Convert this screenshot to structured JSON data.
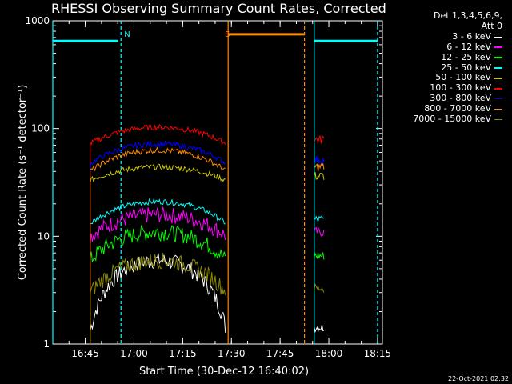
{
  "chart_data": {
    "type": "line",
    "title": "RHESSI Observing Summary Count Rates, Corrected",
    "xlabel": "Start Time (30-Dec-12 16:40:02)",
    "ylabel": "Corrected Count Rate (s⁻¹ detector⁻¹)",
    "yscale": "log",
    "ylim": [
      1,
      1000
    ],
    "yticks": [
      "1",
      "10",
      "100",
      "1000"
    ],
    "xlim_minutes": [
      -5,
      96.5
    ],
    "xticks": [
      {
        "m": 5,
        "label": "16:45"
      },
      {
        "m": 20,
        "label": "17:00"
      },
      {
        "m": 35,
        "label": "17:15"
      },
      {
        "m": 50,
        "label": "17:30"
      },
      {
        "m": 65,
        "label": "17:45"
      },
      {
        "m": 80,
        "label": "18:00"
      },
      {
        "m": 95,
        "label": "18:15"
      }
    ],
    "legend_header": [
      "Det 1,3,4,5,6,9,",
      "Att 0"
    ],
    "series": [
      {
        "name": "3 - 6 keV",
        "color": "#ffffff",
        "peak": 6,
        "edge": 1.3
      },
      {
        "name": "6 - 12 keV",
        "color": "#ff00ff",
        "peak": 16,
        "edge": 10
      },
      {
        "name": "12 - 25 keV",
        "color": "#00ff00",
        "peak": 11,
        "edge": 6
      },
      {
        "name": "25 - 50 keV",
        "color": "#00ffff",
        "peak": 21,
        "edge": 13
      },
      {
        "name": "50 - 100 keV",
        "color": "#cccc00",
        "peak": 44,
        "edge": 33
      },
      {
        "name": "100 - 300 keV",
        "color": "#ff0000",
        "peak": 103,
        "edge": 72
      },
      {
        "name": "300 - 800 keV",
        "color": "#0000ff",
        "peak": 72,
        "edge": 47
      },
      {
        "name": "800 - 7000 keV",
        "color": "#ff8800",
        "peak": 63,
        "edge": 40
      },
      {
        "name": "7000 - 15000 keV",
        "color": "#888800",
        "peak": 6,
        "edge": 3
      }
    ],
    "annotations": [
      {
        "label": "N",
        "color": "#00ffff",
        "m": 16
      },
      {
        "label": "S",
        "color": "#ff8800",
        "m": 47
      }
    ],
    "timestamp": "22-Oct-2021 02:32"
  }
}
